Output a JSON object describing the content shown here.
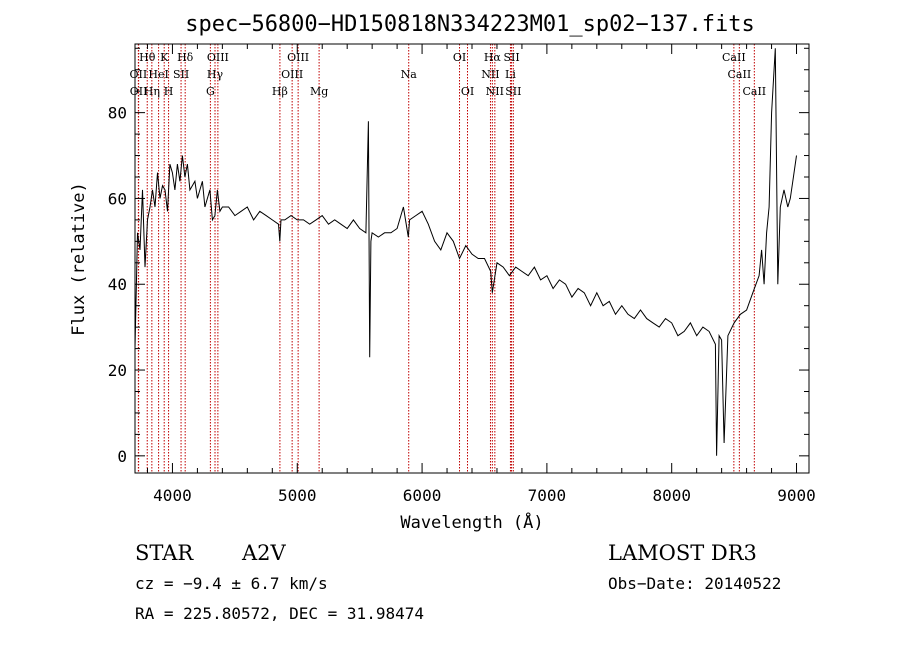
{
  "chart_data": {
    "type": "line",
    "title": "spec−56800−HD150818N334223M01_sp02−137.fits",
    "xlabel": "Wavelength (Å)",
    "ylabel": "Flux (relative)",
    "xlim": [
      3700,
      9100
    ],
    "ylim": [
      -4,
      96
    ],
    "xticks": [
      {
        "value": 4000,
        "label": "4000"
      },
      {
        "value": 5000,
        "label": "5000"
      },
      {
        "value": 6000,
        "label": "6000"
      },
      {
        "value": 7000,
        "label": "7000"
      },
      {
        "value": 8000,
        "label": "8000"
      },
      {
        "value": 9000,
        "label": "9000"
      }
    ],
    "yticks": [
      {
        "value": 0,
        "label": "0"
      },
      {
        "value": 20,
        "label": "20"
      },
      {
        "value": 40,
        "label": "40"
      },
      {
        "value": 60,
        "label": "60"
      },
      {
        "value": 80,
        "label": "80"
      }
    ],
    "grid": false,
    "line_color": "#000000",
    "marker_color": "#c00000",
    "series": [
      {
        "x": [
          3700,
          3720,
          3740,
          3760,
          3780,
          3800,
          3820,
          3840,
          3860,
          3880,
          3900,
          3920,
          3940,
          3960,
          3980,
          4000,
          4020,
          4040,
          4060,
          4080,
          4100,
          4120,
          4140,
          4160,
          4180,
          4200,
          4220,
          4240,
          4260,
          4280,
          4300,
          4320,
          4340,
          4360,
          4380,
          4400,
          4450,
          4500,
          4550,
          4600,
          4650,
          4700,
          4750,
          4800,
          4850,
          4860,
          4870,
          4900,
          4950,
          5000,
          5050,
          5100,
          5150,
          5200,
          5250,
          5300,
          5350,
          5400,
          5450,
          5500,
          5550,
          5570,
          5580,
          5590,
          5600,
          5650,
          5700,
          5750,
          5800,
          5850,
          5890,
          5900,
          5950,
          6000,
          6050,
          6100,
          6150,
          6200,
          6250,
          6300,
          6350,
          6400,
          6450,
          6500,
          6550,
          6563,
          6600,
          6650,
          6700,
          6750,
          6800,
          6850,
          6900,
          6950,
          7000,
          7050,
          7100,
          7150,
          7200,
          7250,
          7300,
          7350,
          7400,
          7450,
          7500,
          7550,
          7600,
          7650,
          7700,
          7750,
          7800,
          7850,
          7900,
          7950,
          8000,
          8050,
          8100,
          8150,
          8200,
          8250,
          8300,
          8350,
          8360,
          8380,
          8400,
          8420,
          8450,
          8500,
          8550,
          8600,
          8650,
          8700,
          8720,
          8740,
          8760,
          8780,
          8800,
          8830,
          8850,
          8870,
          8900,
          8930,
          8950,
          8970,
          9000
        ],
        "y": [
          25,
          52,
          48,
          62,
          44,
          55,
          58,
          62,
          58,
          66,
          60,
          63,
          62,
          57,
          68,
          66,
          62,
          68,
          64,
          70,
          65,
          68,
          62,
          63,
          64,
          60,
          62,
          64,
          58,
          60,
          62,
          55,
          56,
          62,
          57,
          58,
          58,
          56,
          57,
          58,
          55,
          57,
          56,
          55,
          54,
          50,
          55,
          55,
          56,
          55,
          55,
          54,
          55,
          56,
          54,
          55,
          54,
          53,
          55,
          53,
          52,
          78,
          23,
          50,
          52,
          51,
          52,
          52,
          53,
          58,
          51,
          55,
          56,
          57,
          54,
          50,
          48,
          52,
          50,
          46,
          49,
          47,
          46,
          46,
          43,
          38,
          45,
          44,
          42,
          44,
          43,
          42,
          44,
          41,
          42,
          39,
          41,
          40,
          37,
          39,
          38,
          35,
          38,
          35,
          36,
          33,
          35,
          33,
          32,
          34,
          32,
          31,
          30,
          32,
          31,
          28,
          29,
          31,
          28,
          30,
          29,
          26,
          0,
          28,
          27,
          3,
          28,
          31,
          33,
          34,
          38,
          42,
          48,
          40,
          52,
          58,
          80,
          95,
          40,
          58,
          62,
          58,
          60,
          64,
          70
        ]
      }
    ],
    "annotations": [
      {
        "label": "Hθ",
        "x": 3798,
        "row": 1
      },
      {
        "label": "OII",
        "x": 3727,
        "row": 2
      },
      {
        "label": "OII",
        "x": 3729,
        "row": 3
      },
      {
        "label": "Hη",
        "x": 3835,
        "row": 3
      },
      {
        "label": "HeI",
        "x": 3889,
        "row": 2
      },
      {
        "label": "K",
        "x": 3934,
        "row": 1
      },
      {
        "label": "H",
        "x": 3969,
        "row": 3
      },
      {
        "label": "SII",
        "x": 4069,
        "row": 2
      },
      {
        "label": "Hδ",
        "x": 4102,
        "row": 1
      },
      {
        "label": "G",
        "x": 4304,
        "row": 3
      },
      {
        "label": "OIII",
        "x": 4364,
        "row": 1
      },
      {
        "label": "Hγ",
        "x": 4341,
        "row": 2
      },
      {
        "label": "Hβ",
        "x": 4861,
        "row": 3
      },
      {
        "label": "OIII",
        "x": 5007,
        "row": 1
      },
      {
        "label": "OIII",
        "x": 4959,
        "row": 2
      },
      {
        "label": "Mg",
        "x": 5175,
        "row": 3
      },
      {
        "label": "Na",
        "x": 5893,
        "row": 2
      },
      {
        "label": "OI",
        "x": 6300,
        "row": 1
      },
      {
        "label": "OI",
        "x": 6364,
        "row": 3
      },
      {
        "label": "Hα",
        "x": 6563,
        "row": 1
      },
      {
        "label": "NII",
        "x": 6548,
        "row": 2
      },
      {
        "label": "NII",
        "x": 6583,
        "row": 3
      },
      {
        "label": "SII",
        "x": 6717,
        "row": 1
      },
      {
        "label": "Li",
        "x": 6708,
        "row": 2
      },
      {
        "label": "SII",
        "x": 6731,
        "row": 3
      },
      {
        "label": "CaII",
        "x": 8498,
        "row": 1
      },
      {
        "label": "CaII",
        "x": 8542,
        "row": 2
      },
      {
        "label": "CaII",
        "x": 8662,
        "row": 3
      }
    ]
  },
  "info": {
    "object_class": "STAR",
    "subclass": "A2V",
    "survey": "LAMOST DR3",
    "cz_line": "cz = −9.4 ± 6.7 km/s",
    "obs_date": "Obs−Date: 20140522",
    "radec": "RA = 225.80572, DEC =  31.98474"
  }
}
